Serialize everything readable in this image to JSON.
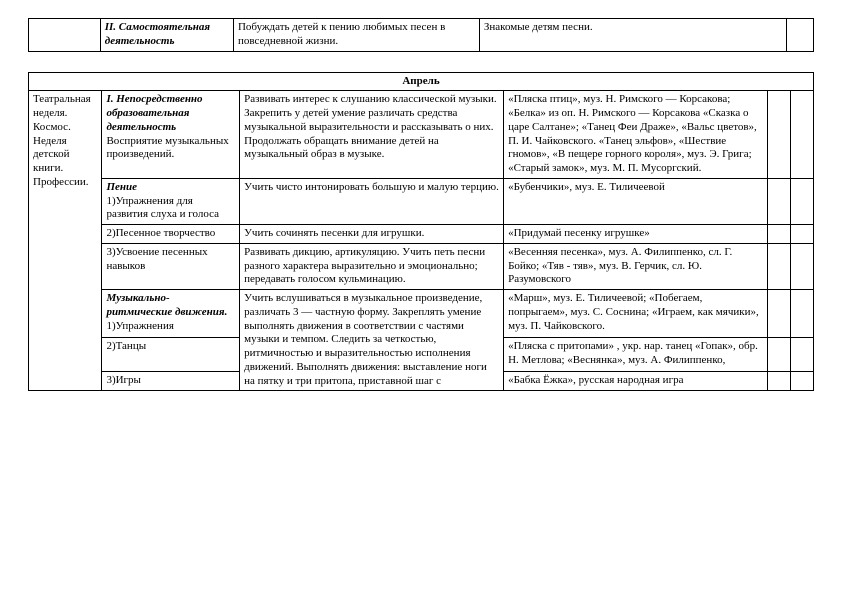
{
  "top_table": {
    "rows": [
      {
        "c1": "",
        "c2_html": "II. Самостоятельная деятельность",
        "c3": "Побуждать детей к пению любимых песен в повседневной жизни.",
        "c4": "Знакомые детям песни.",
        "c5": ""
      }
    ]
  },
  "month": "Апрель",
  "col1": "Театральная неделя. Космос. Неделя детской книги. Профессии.",
  "rows": [
    {
      "c2a": "I. Непосредственно образовательная деятельность",
      "c2b": "Восприятие музыкальных произведений.",
      "c3": "Развивать интерес к слушанию классической музыки. Закрепить у детей умение различать средства музыкальной выразительности и рассказывать о них. Продолжать обращать внимание детей на музыкальный образ в музыке.",
      "c4": "«Пляска птиц», муз. Н. Римского — Корсакова; «Белка» из оп. Н. Римского — Корсакова «Сказка о царе Салтане»; «Танец Феи Драже», «Вальс цветов», П. И. Чайковского. «Танец эльфов», «Шествие гномов», «В пещере горного короля», муз. Э. Грига; «Старый замок», муз. М. П. Мусоргский."
    },
    {
      "c2a": "Пение",
      "c2b": "1)Упражнения для развития слуха и голоса",
      "c3": "Учить чисто интонировать большую и малую терцию.",
      "c4": "«Бубенчики», муз. Е. Тиличеевой"
    },
    {
      "c2b": "2)Песенное творчество",
      "c3": "Учить сочинять песенки для игрушки.",
      "c4": "«Придумай песенку игрушке»"
    },
    {
      "c2b": "3)Усвоение песенных навыков",
      "c3": "Развивать дикцию, артикуляцию. Учить петь песни разного характера выразительно и эмоционально; передавать голосом кульминацию.",
      "c4": "«Весенняя песенка», муз. А. Филиппенко, сл. Г. Бойко; «Тяв - тяв», муз. В. Герчик, сл. Ю. Разумовского"
    },
    {
      "c2a": "Музыкально-ритмические движения.",
      "c2b": "1)Упражнения",
      "c3": "Учить вслушиваться в музыкальное произведение, различать 3 — частную форму. Закреплять умение выполнять движения в соответствии с частями музыки и темпом.  Следить за четкостью, ритмичностью и выразительностью исполнения движений. Выполнять движения: выставление ноги на пятку и три притопа, приставной шаг с",
      "c4": "«Марш», муз. Е. Тиличеевой; «Побегаем, попрыгаем», муз. С. Соснина; «Играем, как мячики», муз. П. Чайковского."
    },
    {
      "c2b": "2)Танцы",
      "c4": "«Пляска с притопами» , укр. нар. танец «Гопак», обр. Н. Метлова; «Веснянка», муз. А. Филиппенко,"
    },
    {
      "c2b": "3)Игры",
      "c4": "«Бабка Ёжка», русская народная игра"
    }
  ]
}
